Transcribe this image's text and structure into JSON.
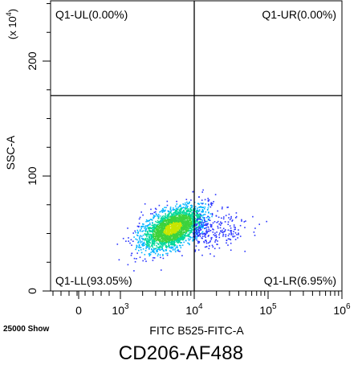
{
  "chart_data": {
    "type": "scatter",
    "plot_kind": "flow-cytometry density dot plot",
    "xlabel": "FITC B525-FITC-A",
    "ylabel": "SSC-A",
    "y_multiplier_label": "(x 10^4)",
    "x_scale": "log",
    "x_ticks": [
      {
        "value": 0,
        "label": "0"
      },
      {
        "value": 1000,
        "label": "10^3"
      },
      {
        "value": 10000,
        "label": "10^4"
      },
      {
        "value": 100000,
        "label": "10^5"
      },
      {
        "value": 1000000,
        "label": "10^6"
      }
    ],
    "y_ticks": [
      {
        "value": 0,
        "label": "0"
      },
      {
        "value": 100,
        "label": "100"
      },
      {
        "value": 200,
        "label": "200"
      }
    ],
    "ylim": [
      0,
      250
    ],
    "gates": {
      "x_threshold": 10000,
      "y_threshold": 170
    },
    "quadrants": [
      {
        "id": "UL",
        "label": "Q1-UL(0.00%)",
        "percent": 0.0
      },
      {
        "id": "UR",
        "label": "Q1-UR(0.00%)",
        "percent": 0.0
      },
      {
        "id": "LL",
        "label": "Q1-LL(93.05%)",
        "percent": 93.05
      },
      {
        "id": "LR",
        "label": "Q1-LR(6.95%)",
        "percent": 6.95
      }
    ],
    "population": {
      "center_x": 5000,
      "center_y": 55,
      "color_scale": [
        "#2a35ff",
        "#00b4ff",
        "#00d89a",
        "#3cd23c",
        "#c8e600"
      ]
    },
    "events_label": "25000 Show",
    "grid": false
  },
  "caption": "CD206-AF488"
}
